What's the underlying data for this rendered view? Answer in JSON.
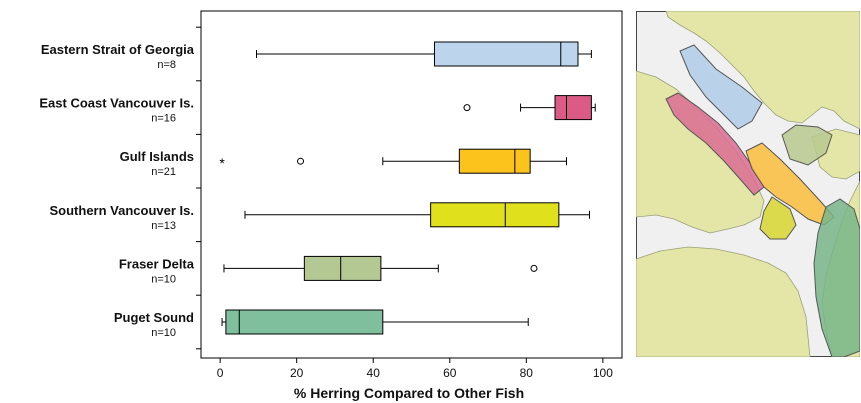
{
  "chart_data": {
    "type": "boxplot",
    "title": "",
    "xlabel": "% Herring Compared to Other Fish",
    "ylabel": "",
    "xlim": [
      -5,
      105
    ],
    "xticks": [
      0,
      20,
      40,
      60,
      80,
      100
    ],
    "grid": false,
    "legend": "none",
    "series": [
      {
        "name": "Eastern Strait of Georgia",
        "n_label": "n=8",
        "whisker_low": 9.5,
        "q1": 56,
        "median": 89,
        "q3": 93.5,
        "whisker_high": 97,
        "outliers": [],
        "extremes": [],
        "color": "#bcd4ec"
      },
      {
        "name": "East Coast Vancouver Is.",
        "n_label": "n=16",
        "whisker_low": 78.5,
        "q1": 87.5,
        "median": 90.5,
        "q3": 97,
        "whisker_high": 98,
        "outliers": [
          64.5
        ],
        "extremes": [],
        "color": "#dc5b86"
      },
      {
        "name": "Gulf Islands",
        "n_label": "n=21",
        "whisker_low": 42.5,
        "q1": 62.5,
        "median": 77,
        "q3": 81,
        "whisker_high": 90.5,
        "outliers": [
          21
        ],
        "extremes": [
          0.5
        ],
        "color": "#fcc31d"
      },
      {
        "name": "Southern Vancouver Is.",
        "n_label": "n=13",
        "whisker_low": 6.5,
        "q1": 55,
        "median": 74.5,
        "q3": 88.5,
        "whisker_high": 96.5,
        "outliers": [],
        "extremes": [],
        "color": "#e0e01c"
      },
      {
        "name": "Fraser Delta",
        "n_label": "n=10",
        "whisker_low": 1,
        "q1": 22,
        "median": 31.5,
        "q3": 42,
        "whisker_high": 57,
        "outliers": [
          82
        ],
        "extremes": [],
        "color": "#b4c894"
      },
      {
        "name": "Puget Sound",
        "n_label": "n=10",
        "whisker_low": 0.5,
        "q1": 1.5,
        "median": 5,
        "q3": 42.5,
        "whisker_high": 80.5,
        "outliers": [],
        "extremes": [],
        "color": "#7fbf9e"
      }
    ]
  },
  "map": {
    "water_color": "#f0f0f0",
    "land_color": "#e3e6a6",
    "region_colors": {
      "eastern_strait_of_georgia": "#b0cde8",
      "east_coast_vancouver_is": "#db6c93",
      "gulf_islands": "#fbbd3c",
      "southern_vancouver_is": "#d6d62f",
      "fraser_delta": "#b7c98e",
      "puget_sound": "#78b58a"
    }
  }
}
